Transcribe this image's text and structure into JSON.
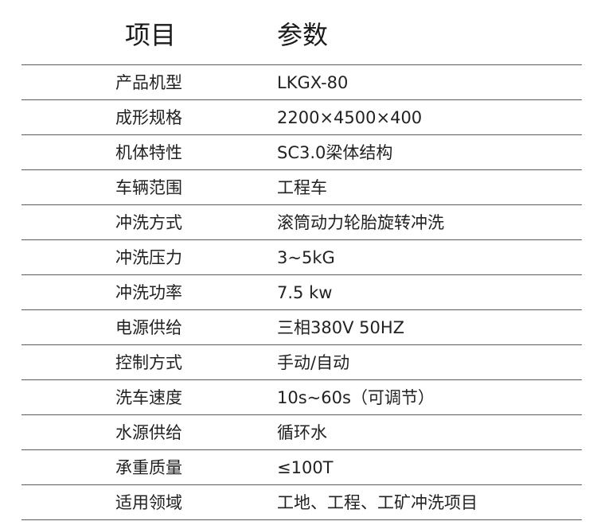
{
  "header": {
    "item": "项目",
    "param": "参数"
  },
  "rows": [
    {
      "label": "产品机型",
      "value": "LKGX-80"
    },
    {
      "label": "成形规格",
      "value": "2200×4500×400"
    },
    {
      "label": "机体特性",
      "value": "SC3.0梁体结构"
    },
    {
      "label": "车辆范围",
      "value": "工程车"
    },
    {
      "label": "冲洗方式",
      "value": "滚筒动力轮胎旋转冲洗"
    },
    {
      "label": "冲洗压力",
      "value": "3~5kG"
    },
    {
      "label": "冲洗功率",
      "value": "7.5 kw"
    },
    {
      "label": "电源供给",
      "value": "三相380V 50HZ"
    },
    {
      "label": "控制方式",
      "value": "手动/自动"
    },
    {
      "label": "洗车速度",
      "value": "10s~60s（可调节）"
    },
    {
      "label": "水源供给",
      "value": "循环水"
    },
    {
      "label": "承重质量",
      "value": "≤100T"
    },
    {
      "label": "适用领域",
      "value": "工地、工程、工矿冲洗项目"
    }
  ]
}
